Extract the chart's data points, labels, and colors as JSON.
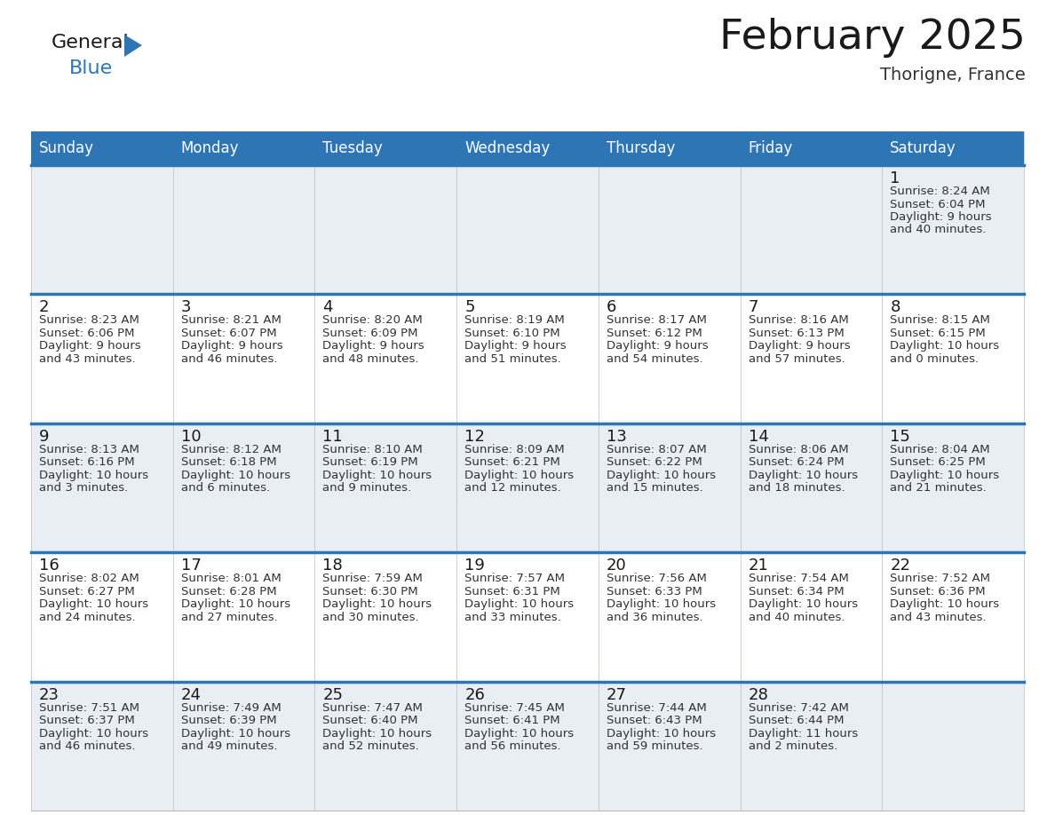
{
  "title": "February 2025",
  "subtitle": "Thorigne, France",
  "header_bg_color": "#2E75B6",
  "header_text_color": "#FFFFFF",
  "border_color": "#2E75B6",
  "title_color": "#1a1a1a",
  "subtitle_color": "#333333",
  "day_number_color": "#1a1a1a",
  "info_text_color": "#333333",
  "row1_bg_color": "#E8EEF4",
  "row2_bg_color": "#FFFFFF",
  "days_of_week": [
    "Sunday",
    "Monday",
    "Tuesday",
    "Wednesday",
    "Thursday",
    "Friday",
    "Saturday"
  ],
  "calendar_data": [
    [
      null,
      null,
      null,
      null,
      null,
      null,
      {
        "day": 1,
        "sunrise": "8:24 AM",
        "sunset": "6:04 PM",
        "daylight_h": "9 hours",
        "daylight_m": "and 40 minutes."
      }
    ],
    [
      {
        "day": 2,
        "sunrise": "8:23 AM",
        "sunset": "6:06 PM",
        "daylight_h": "9 hours",
        "daylight_m": "and 43 minutes."
      },
      {
        "day": 3,
        "sunrise": "8:21 AM",
        "sunset": "6:07 PM",
        "daylight_h": "9 hours",
        "daylight_m": "and 46 minutes."
      },
      {
        "day": 4,
        "sunrise": "8:20 AM",
        "sunset": "6:09 PM",
        "daylight_h": "9 hours",
        "daylight_m": "and 48 minutes."
      },
      {
        "day": 5,
        "sunrise": "8:19 AM",
        "sunset": "6:10 PM",
        "daylight_h": "9 hours",
        "daylight_m": "and 51 minutes."
      },
      {
        "day": 6,
        "sunrise": "8:17 AM",
        "sunset": "6:12 PM",
        "daylight_h": "9 hours",
        "daylight_m": "and 54 minutes."
      },
      {
        "day": 7,
        "sunrise": "8:16 AM",
        "sunset": "6:13 PM",
        "daylight_h": "9 hours",
        "daylight_m": "and 57 minutes."
      },
      {
        "day": 8,
        "sunrise": "8:15 AM",
        "sunset": "6:15 PM",
        "daylight_h": "10 hours",
        "daylight_m": "and 0 minutes."
      }
    ],
    [
      {
        "day": 9,
        "sunrise": "8:13 AM",
        "sunset": "6:16 PM",
        "daylight_h": "10 hours",
        "daylight_m": "and 3 minutes."
      },
      {
        "day": 10,
        "sunrise": "8:12 AM",
        "sunset": "6:18 PM",
        "daylight_h": "10 hours",
        "daylight_m": "and 6 minutes."
      },
      {
        "day": 11,
        "sunrise": "8:10 AM",
        "sunset": "6:19 PM",
        "daylight_h": "10 hours",
        "daylight_m": "and 9 minutes."
      },
      {
        "day": 12,
        "sunrise": "8:09 AM",
        "sunset": "6:21 PM",
        "daylight_h": "10 hours",
        "daylight_m": "and 12 minutes."
      },
      {
        "day": 13,
        "sunrise": "8:07 AM",
        "sunset": "6:22 PM",
        "daylight_h": "10 hours",
        "daylight_m": "and 15 minutes."
      },
      {
        "day": 14,
        "sunrise": "8:06 AM",
        "sunset": "6:24 PM",
        "daylight_h": "10 hours",
        "daylight_m": "and 18 minutes."
      },
      {
        "day": 15,
        "sunrise": "8:04 AM",
        "sunset": "6:25 PM",
        "daylight_h": "10 hours",
        "daylight_m": "and 21 minutes."
      }
    ],
    [
      {
        "day": 16,
        "sunrise": "8:02 AM",
        "sunset": "6:27 PM",
        "daylight_h": "10 hours",
        "daylight_m": "and 24 minutes."
      },
      {
        "day": 17,
        "sunrise": "8:01 AM",
        "sunset": "6:28 PM",
        "daylight_h": "10 hours",
        "daylight_m": "and 27 minutes."
      },
      {
        "day": 18,
        "sunrise": "7:59 AM",
        "sunset": "6:30 PM",
        "daylight_h": "10 hours",
        "daylight_m": "and 30 minutes."
      },
      {
        "day": 19,
        "sunrise": "7:57 AM",
        "sunset": "6:31 PM",
        "daylight_h": "10 hours",
        "daylight_m": "and 33 minutes."
      },
      {
        "day": 20,
        "sunrise": "7:56 AM",
        "sunset": "6:33 PM",
        "daylight_h": "10 hours",
        "daylight_m": "and 36 minutes."
      },
      {
        "day": 21,
        "sunrise": "7:54 AM",
        "sunset": "6:34 PM",
        "daylight_h": "10 hours",
        "daylight_m": "and 40 minutes."
      },
      {
        "day": 22,
        "sunrise": "7:52 AM",
        "sunset": "6:36 PM",
        "daylight_h": "10 hours",
        "daylight_m": "and 43 minutes."
      }
    ],
    [
      {
        "day": 23,
        "sunrise": "7:51 AM",
        "sunset": "6:37 PM",
        "daylight_h": "10 hours",
        "daylight_m": "and 46 minutes."
      },
      {
        "day": 24,
        "sunrise": "7:49 AM",
        "sunset": "6:39 PM",
        "daylight_h": "10 hours",
        "daylight_m": "and 49 minutes."
      },
      {
        "day": 25,
        "sunrise": "7:47 AM",
        "sunset": "6:40 PM",
        "daylight_h": "10 hours",
        "daylight_m": "and 52 minutes."
      },
      {
        "day": 26,
        "sunrise": "7:45 AM",
        "sunset": "6:41 PM",
        "daylight_h": "10 hours",
        "daylight_m": "and 56 minutes."
      },
      {
        "day": 27,
        "sunrise": "7:44 AM",
        "sunset": "6:43 PM",
        "daylight_h": "10 hours",
        "daylight_m": "and 59 minutes."
      },
      {
        "day": 28,
        "sunrise": "7:42 AM",
        "sunset": "6:44 PM",
        "daylight_h": "11 hours",
        "daylight_m": "and 2 minutes."
      },
      null
    ]
  ],
  "logo_general_color": "#1a1a1a",
  "logo_blue_color": "#2E75B6",
  "logo_triangle_color": "#2E75B6"
}
